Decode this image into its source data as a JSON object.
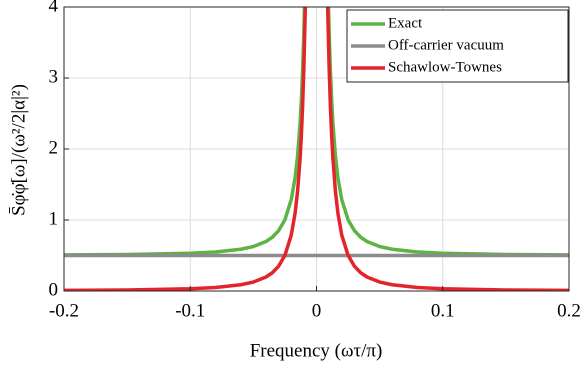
{
  "chart_data": {
    "type": "line",
    "xlabel": "Frequency (ωτ/π)",
    "ylabel": "S̄φ̇φ̇[ω]/(ω²/2|α|²)",
    "x": [
      -0.2,
      -0.15,
      -0.1,
      -0.08,
      -0.06,
      -0.05,
      -0.04,
      -0.035,
      -0.03,
      -0.025,
      -0.02,
      -0.017,
      -0.015,
      -0.013,
      -0.012,
      -0.011,
      -0.01,
      -0.009,
      -0.008,
      0.008,
      0.009,
      0.01,
      0.011,
      0.012,
      0.013,
      0.015,
      0.017,
      0.02,
      0.025,
      0.03,
      0.035,
      0.04,
      0.05,
      0.06,
      0.08,
      0.1,
      0.15,
      0.2
    ],
    "series": [
      {
        "name": "Exact",
        "color": "#5cb445",
        "values": [
          0.508,
          0.514,
          0.532,
          0.549,
          0.588,
          0.626,
          0.697,
          0.757,
          0.85,
          1.004,
          1.288,
          1.59,
          1.9,
          2.364,
          2.688,
          3.103,
          3.65,
          4.389,
          5.422,
          5.422,
          4.389,
          3.65,
          3.103,
          2.688,
          2.364,
          1.9,
          1.59,
          1.288,
          1.004,
          0.85,
          0.757,
          0.697,
          0.626,
          0.588,
          0.549,
          0.532,
          0.514,
          0.508
        ]
      },
      {
        "name": "Off-carrier vacuum",
        "color": "#8c8c8c",
        "values": [
          0.5,
          0.5,
          0.5,
          0.5,
          0.5,
          0.5,
          0.5,
          0.5,
          0.5,
          0.5,
          0.5,
          0.5,
          0.5,
          0.5,
          0.5,
          0.5,
          0.5,
          0.5,
          0.5,
          0.5,
          0.5,
          0.5,
          0.5,
          0.5,
          0.5,
          0.5,
          0.5,
          0.5,
          0.5,
          0.5,
          0.5,
          0.5,
          0.5,
          0.5,
          0.5,
          0.5,
          0.5,
          0.5
        ]
      },
      {
        "name": "Schawlow-Townes",
        "color": "#e3242b",
        "values": [
          0.008,
          0.014,
          0.032,
          0.049,
          0.088,
          0.126,
          0.197,
          0.257,
          0.35,
          0.504,
          0.788,
          1.09,
          1.4,
          1.864,
          2.188,
          2.603,
          3.15,
          3.889,
          4.922,
          4.922,
          3.889,
          3.15,
          2.603,
          2.188,
          1.864,
          1.4,
          1.09,
          0.788,
          0.504,
          0.35,
          0.257,
          0.197,
          0.126,
          0.088,
          0.049,
          0.032,
          0.014,
          0.008
        ]
      }
    ],
    "xlim": [
      -0.2,
      0.2
    ],
    "xticks": [
      -0.2,
      -0.1,
      0,
      0.1,
      0.2
    ],
    "ylim": [
      0,
      4
    ],
    "yticks": [
      0,
      1,
      2,
      3,
      4
    ],
    "grid": true,
    "legend": "upper right"
  }
}
